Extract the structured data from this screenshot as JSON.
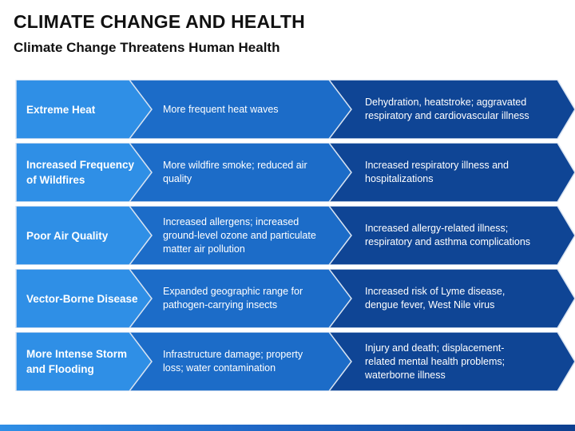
{
  "title": "CLIMATE CHANGE AND HEALTH",
  "subtitle": "Climate Change Threatens Human Health",
  "colors": {
    "category_fill": "#2f8fe6",
    "cause_fill": "#1c6cc8",
    "effect_fill": "#0f4595",
    "divider": "#d9e4f2"
  },
  "rows": [
    {
      "category": [
        "Extreme Heat"
      ],
      "cause": [
        "More frequent heat waves"
      ],
      "effect": [
        "Dehydration, heatstroke; aggravated",
        "respiratory and cardiovascular illness"
      ]
    },
    {
      "category": [
        "Increased Frequency",
        "of Wildfires"
      ],
      "cause": [
        "More wildfire smoke; reduced air",
        "quality"
      ],
      "effect": [
        "Increased respiratory illness and",
        "hospitalizations"
      ]
    },
    {
      "category": [
        "Poor Air Quality"
      ],
      "cause": [
        "Increased allergens; increased",
        "ground-level ozone and particulate",
        "matter air pollution"
      ],
      "effect": [
        "Increased allergy-related illness;",
        "respiratory and asthma complications"
      ]
    },
    {
      "category": [
        "Vector-Borne Disease"
      ],
      "cause": [
        "Expanded geographic range for",
        "pathogen-carrying insects"
      ],
      "effect": [
        "Increased risk of Lyme disease,",
        "dengue fever, West Nile virus"
      ]
    },
    {
      "category": [
        "More Intense Storm",
        "and Flooding"
      ],
      "cause": [
        "Infrastructure damage; property",
        "loss; water contamination"
      ],
      "effect": [
        "Injury and death; displacement-",
        "related mental health problems;",
        "waterborne illness"
      ]
    }
  ]
}
